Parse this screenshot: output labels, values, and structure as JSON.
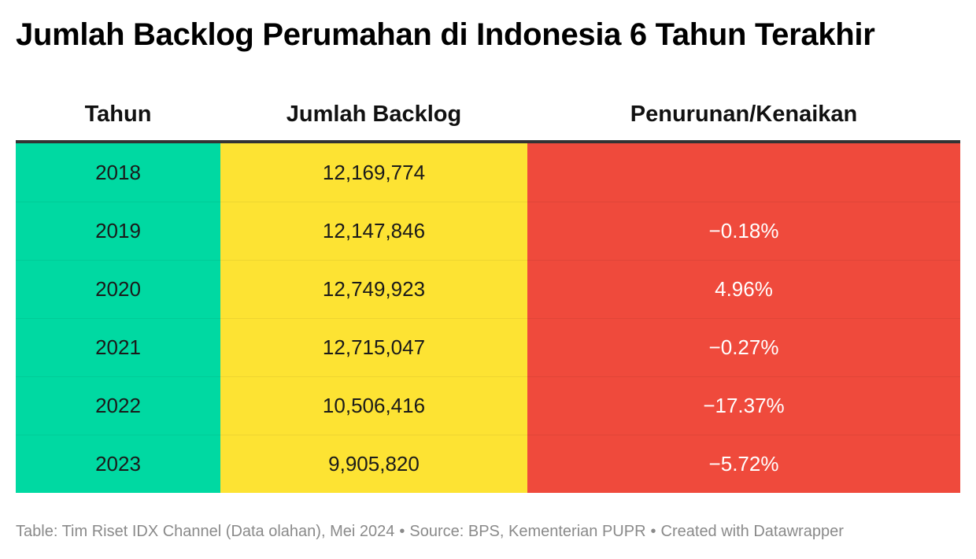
{
  "title": "Jumlah Backlog Perumahan di Indonesia 6 Tahun Terakhir",
  "footer": {
    "table_credit": "Table: Tim Riset IDX Channel (Data olahan), Mei 2024",
    "source": "Source: BPS, Kementerian PUPR",
    "created_with": "Created with Datawrapper",
    "separator": "•"
  },
  "colors": {
    "year_column": "#00d9a2",
    "backlog_column": "#fde333",
    "change_column": "#ef4a3c"
  },
  "chart_data": {
    "type": "table",
    "title": "Jumlah Backlog Perumahan di Indonesia 6 Tahun Terakhir",
    "columns": [
      "Tahun",
      "Jumlah Backlog",
      "Penurunan/Kenaikan"
    ],
    "rows": [
      [
        "2018",
        "12,169,774",
        ""
      ],
      [
        "2019",
        "12,147,846",
        "−0.18%"
      ],
      [
        "2020",
        "12,749,923",
        "4.96%"
      ],
      [
        "2021",
        "12,715,047",
        "−0.27%"
      ],
      [
        "2022",
        "10,506,416",
        "−17.37%"
      ],
      [
        "2023",
        "9,905,820",
        "−5.72%"
      ]
    ],
    "backlog_values": [
      12169774,
      12147846,
      12749923,
      12715047,
      10506416,
      9905820
    ],
    "change_percent": [
      null,
      -0.18,
      4.96,
      -0.27,
      -17.37,
      -5.72
    ]
  }
}
